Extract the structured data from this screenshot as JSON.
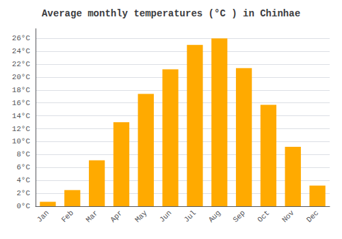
{
  "chart_data": {
    "type": "bar",
    "title": "Average monthly temperatures (°C ) in Chinhae",
    "categories": [
      "Jan",
      "Feb",
      "Mar",
      "Apr",
      "May",
      "Jun",
      "Jul",
      "Aug",
      "Sep",
      "Oct",
      "Nov",
      "Dec"
    ],
    "values": [
      0.7,
      2.5,
      7.1,
      13.0,
      17.4,
      21.2,
      25.0,
      26.0,
      21.4,
      15.7,
      9.2,
      3.2
    ],
    "color": "#FFAA00",
    "ylim": [
      0,
      27.5
    ],
    "yticks": [
      {
        "value": 0,
        "label": "0°C"
      },
      {
        "value": 2,
        "label": "2°C"
      },
      {
        "value": 4,
        "label": "4°C"
      },
      {
        "value": 6,
        "label": "6°C"
      },
      {
        "value": 8,
        "label": "8°C"
      },
      {
        "value": 10,
        "label": "10°C"
      },
      {
        "value": 12,
        "label": "12°C"
      },
      {
        "value": 14,
        "label": "14°C"
      },
      {
        "value": 16,
        "label": "16°C"
      },
      {
        "value": 18,
        "label": "18°C"
      },
      {
        "value": 20,
        "label": "20°C"
      },
      {
        "value": 22,
        "label": "22°C"
      },
      {
        "value": 24,
        "label": "24°C"
      },
      {
        "value": 26,
        "label": "26°C"
      }
    ],
    "grid": true
  }
}
